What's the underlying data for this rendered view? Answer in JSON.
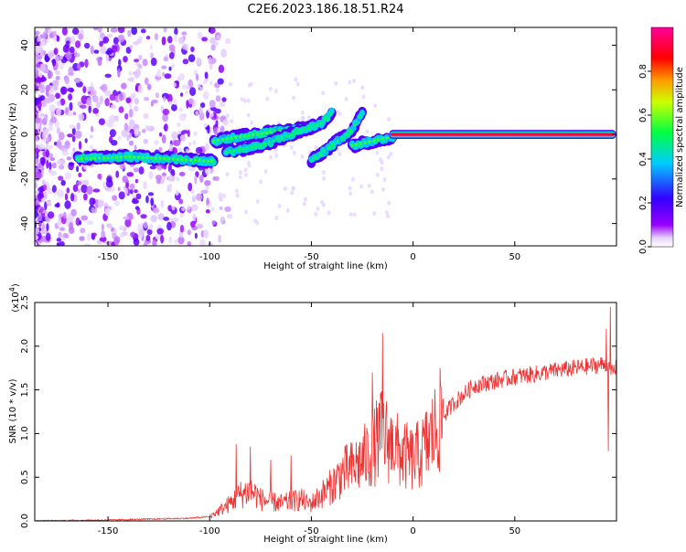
{
  "title": "C2E6.2023.186.18.51.R24",
  "chart_data": [
    {
      "type": "heatmap",
      "xlabel": "Height of straight line (km)",
      "ylabel": "Frequency (Hz)",
      "xlim": [
        -186,
        100
      ],
      "ylim": [
        -50,
        48
      ],
      "xticks": [
        -150,
        -100,
        -50,
        0,
        50
      ],
      "yticks": [
        -40,
        -20,
        0,
        20,
        40
      ],
      "colorbar": {
        "label": "Normalized spectral amplitude",
        "range": [
          0,
          1
        ],
        "ticks": [
          0.0,
          0.2,
          0.4,
          0.6,
          0.8
        ],
        "tick_labels": [
          "0.0",
          "0.2",
          "0.4",
          "0.6",
          "0.8"
        ],
        "colors": [
          "#ffffff",
          "#e8d8ff",
          "#8b00ff",
          "#2200ff",
          "#00e5ff",
          "#00ff44",
          "#ffff00",
          "#ff8800",
          "#ff0000",
          "#ff0088"
        ]
      },
      "tracks": [
        {
          "x": [
            -165,
            -150,
            -140,
            -120,
            -100,
            -98
          ],
          "y": [
            -11,
            -10.5,
            -10,
            -11,
            -12,
            -12
          ],
          "amplitude": 0.45
        },
        {
          "x": [
            -98,
            -85,
            -70,
            -60,
            -50
          ],
          "y": [
            -3,
            -1,
            1,
            2,
            3
          ],
          "amplitude": 0.45
        },
        {
          "x": [
            -92,
            -75,
            -60,
            -45,
            -40
          ],
          "y": [
            -8,
            -5,
            0,
            5,
            10
          ],
          "amplitude": 0.4
        },
        {
          "x": [
            -50,
            -40,
            -30,
            -25
          ],
          "y": [
            -12,
            -5,
            2,
            10
          ],
          "amplitude": 0.4
        },
        {
          "x": [
            -30,
            -20,
            -10
          ],
          "y": [
            -5,
            -3,
            -1
          ],
          "amplitude": 0.45
        },
        {
          "x": [
            -10,
            0,
            10,
            15,
            30,
            50,
            70,
            90,
            98
          ],
          "y": [
            0,
            0,
            0,
            0,
            0,
            0,
            0,
            0,
            0
          ],
          "amplitude": 0.92
        }
      ]
    },
    {
      "type": "line",
      "xlabel": "Height of straight line (km)",
      "ylabel": "SNR (10 * v/v)",
      "y_multiplier": "(x10",
      "y_multiplier_exp": "4",
      "xlim": [
        -186,
        100
      ],
      "ylim": [
        0,
        2.5
      ],
      "xticks": [
        -150,
        -100,
        -50,
        0,
        50
      ],
      "yticks": [
        0.0,
        0.5,
        1.0,
        1.5,
        2.0,
        2.5
      ],
      "ytick_labels": [
        "0.0",
        "0.5",
        "1.0",
        "1.5",
        "2.0",
        "2.5"
      ],
      "line_color": "#ee3333",
      "series": [
        {
          "x": [
            -186,
            -170,
            -150,
            -130,
            -110,
            -100,
            -95,
            -90,
            -85,
            -80,
            -77,
            -75,
            -70,
            -65,
            -60,
            -55,
            -52,
            -50,
            -45,
            -40,
            -35,
            -30,
            -25,
            -20,
            -17,
            -15,
            -12,
            -10,
            -5,
            0,
            5,
            10,
            15,
            20,
            25,
            30,
            40,
            50,
            60,
            70,
            80,
            90,
            95,
            97,
            100
          ],
          "y": [
            0.0,
            0.005,
            0.01,
            0.02,
            0.03,
            0.05,
            0.12,
            0.2,
            0.3,
            0.35,
            0.3,
            0.25,
            0.22,
            0.2,
            0.22,
            0.25,
            0.2,
            0.2,
            0.3,
            0.4,
            0.55,
            0.6,
            0.7,
            0.8,
            0.95,
            1.0,
            0.9,
            0.85,
            0.75,
            0.7,
            0.8,
            1.0,
            1.2,
            1.35,
            1.45,
            1.55,
            1.6,
            1.65,
            1.68,
            1.72,
            1.75,
            1.78,
            1.8,
            1.7,
            1.75
          ],
          "spikes": [
            {
              "x": -87,
              "y": 0.88
            },
            {
              "x": -80,
              "y": 0.85
            },
            {
              "x": -70,
              "y": 0.7
            },
            {
              "x": -60,
              "y": 0.75
            },
            {
              "x": -20,
              "y": 1.7
            },
            {
              "x": -15,
              "y": 2.15
            },
            {
              "x": -10,
              "y": 1.1
            },
            {
              "x": 95,
              "y": 2.2
            },
            {
              "x": 97,
              "y": 2.45
            },
            {
              "x": 96,
              "y": 0.8
            }
          ]
        }
      ]
    }
  ]
}
